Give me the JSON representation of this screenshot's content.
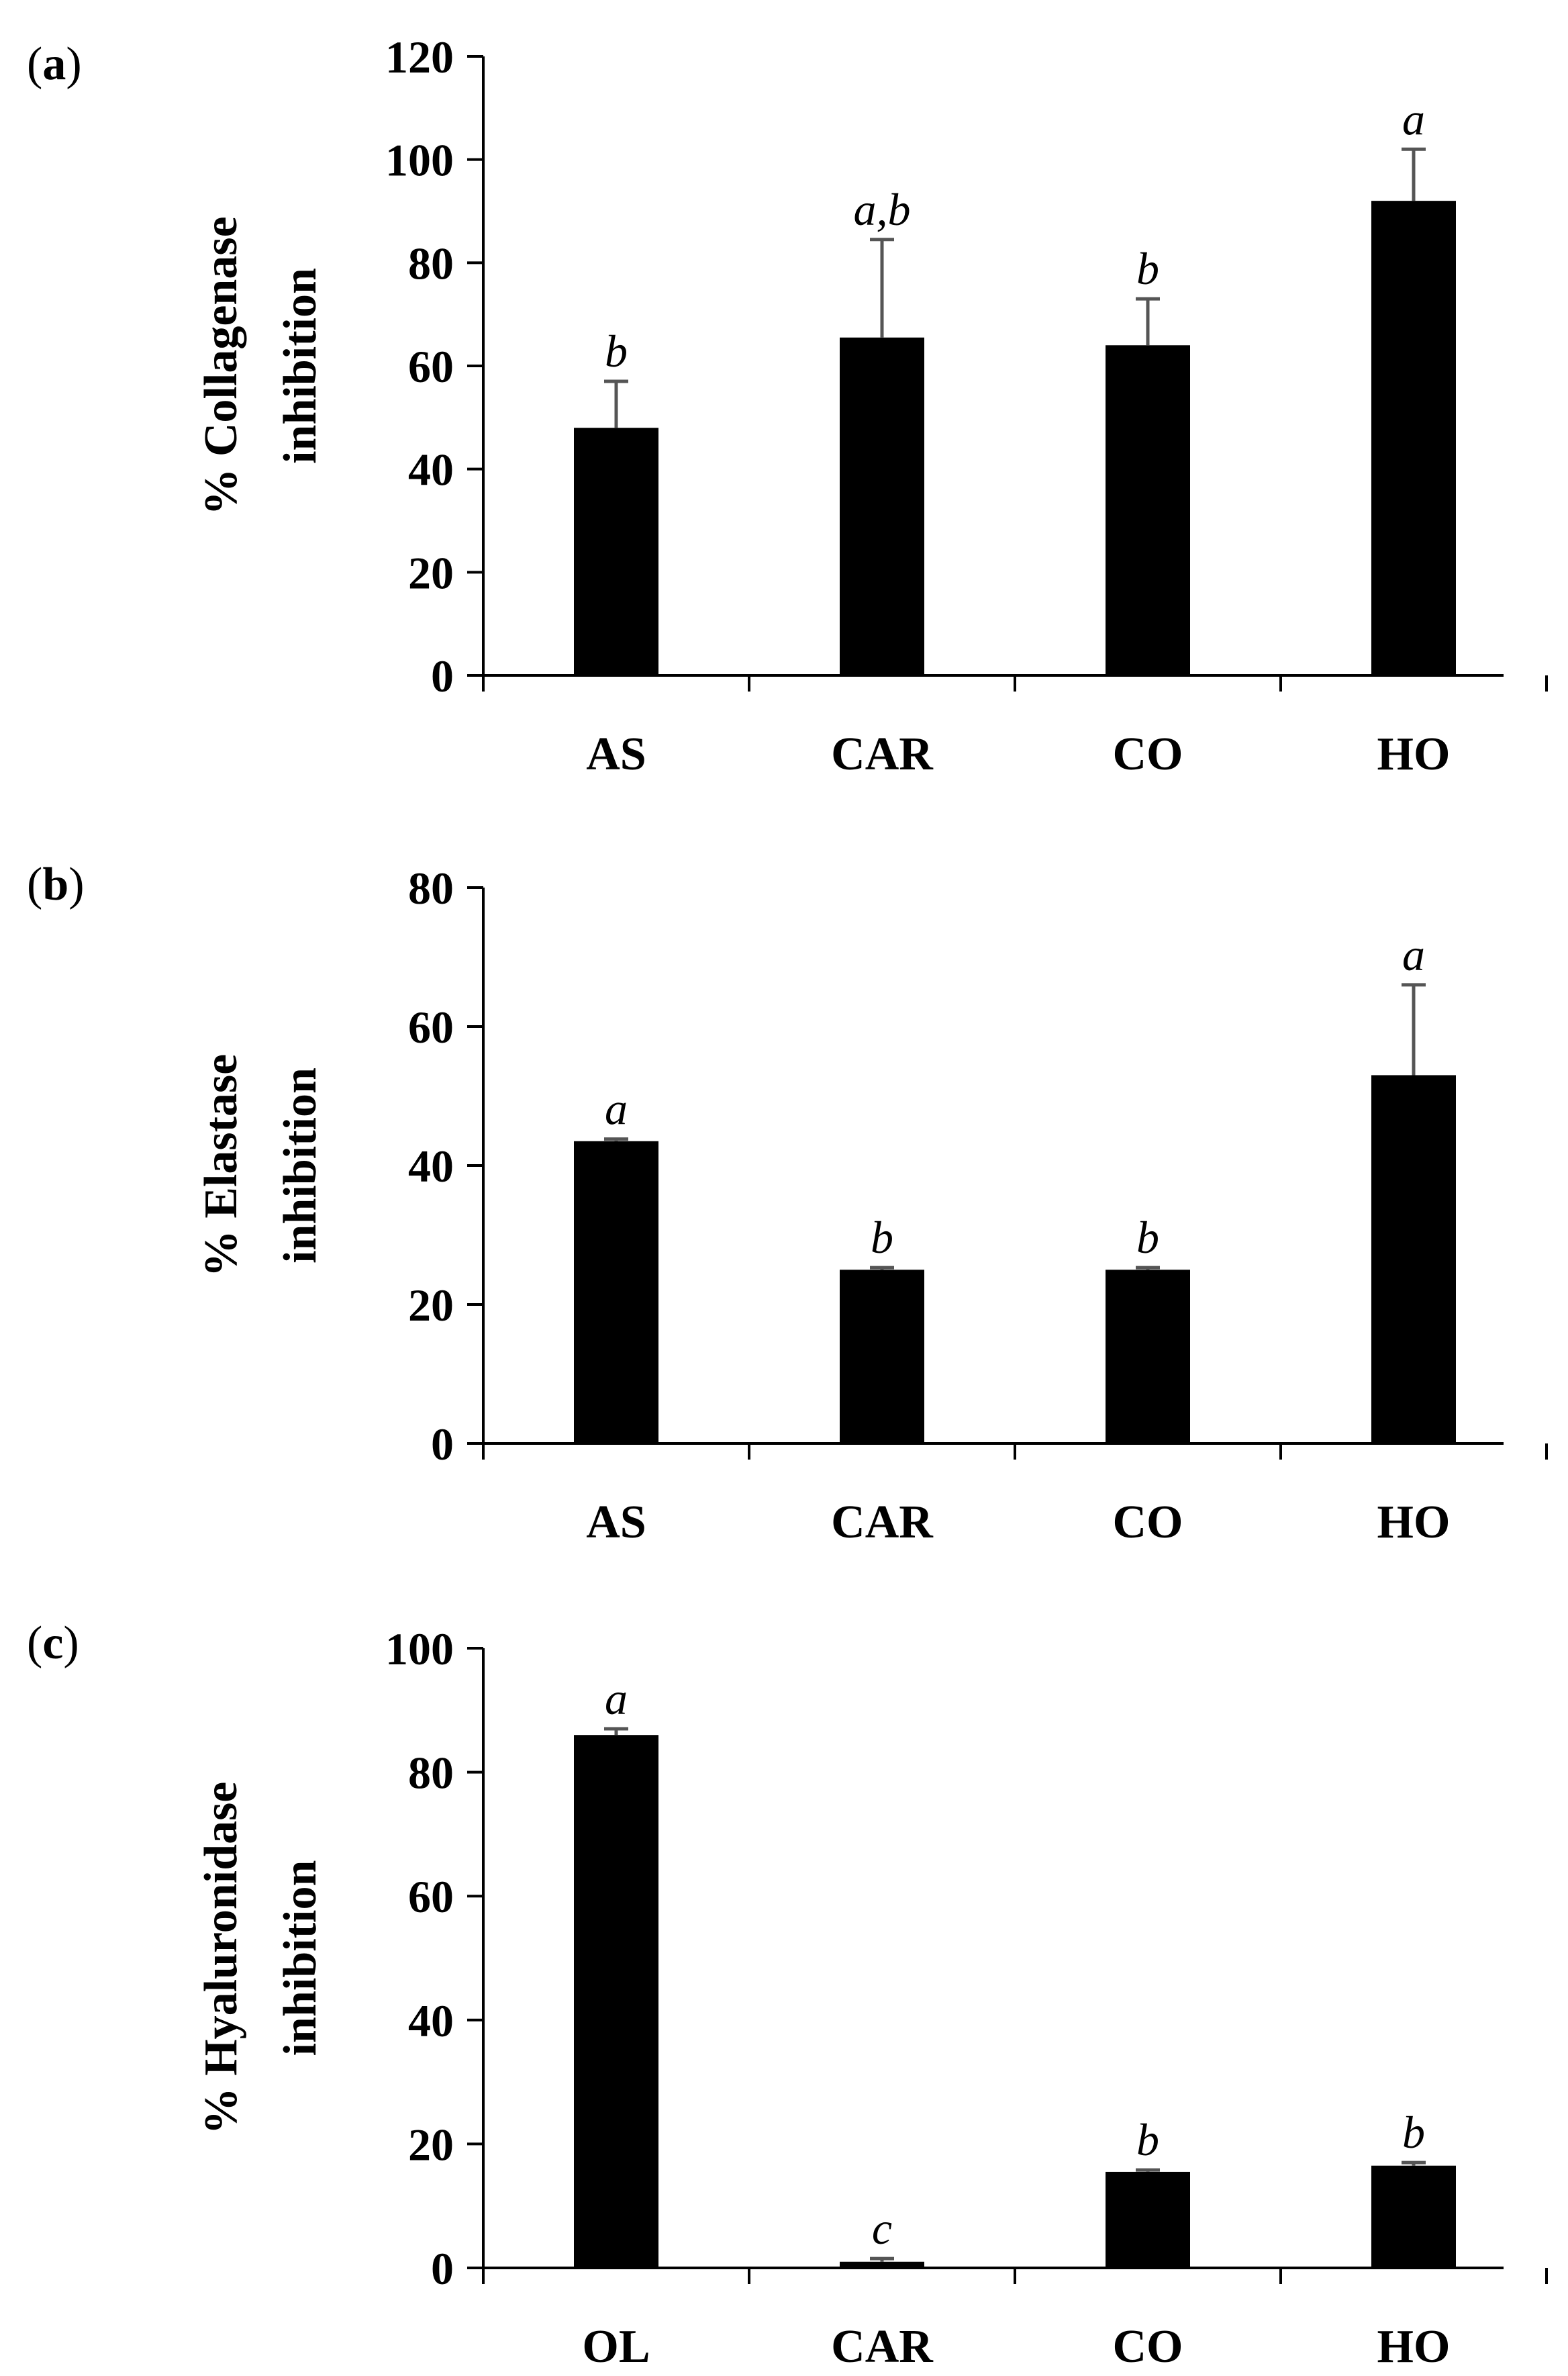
{
  "chart_data": [
    {
      "type": "bar",
      "panel_label": "a",
      "title": "",
      "xlabel": "",
      "ylabel_line1": "% Collagenase",
      "ylabel_line2": "inhibition",
      "categories": [
        "AS",
        "CAR",
        "CO",
        "HO"
      ],
      "values": [
        48,
        65.5,
        64,
        92
      ],
      "errors": [
        9,
        19,
        9,
        10
      ],
      "significance": [
        "b",
        "a,b",
        "b",
        "a"
      ],
      "ylim": [
        0,
        120
      ],
      "yticks": [
        0,
        20,
        40,
        60,
        80,
        100,
        120
      ],
      "ytick_labels": [
        "0",
        "20",
        "40",
        "60",
        "80",
        "100",
        "120"
      ],
      "grid": false,
      "legend": "none"
    },
    {
      "type": "bar",
      "panel_label": "b",
      "title": "",
      "xlabel": "",
      "ylabel_line1": "% Elastase",
      "ylabel_line2": "inhibition",
      "categories": [
        "AS",
        "CAR",
        "CO",
        "HO"
      ],
      "values": [
        43.5,
        25,
        25,
        53
      ],
      "errors": [
        0.3,
        0.3,
        0.3,
        13
      ],
      "significance": [
        "a",
        "b",
        "b",
        "a"
      ],
      "ylim": [
        0,
        80
      ],
      "yticks": [
        0,
        20,
        40,
        60,
        80
      ],
      "ytick_labels": [
        "0",
        "20",
        "40",
        "60",
        "80"
      ],
      "grid": false,
      "legend": "none"
    },
    {
      "type": "bar",
      "panel_label": "c",
      "title": "",
      "xlabel": "",
      "ylabel_line1": "% Hyaluronidase",
      "ylabel_line2": "inhibition",
      "categories": [
        "OL",
        "CAR",
        "CO",
        "HO"
      ],
      "values": [
        86,
        1,
        15.5,
        16.5
      ],
      "errors": [
        1,
        0.5,
        0.3,
        0.5
      ],
      "significance": [
        "a",
        "c",
        "b",
        "b"
      ],
      "ylim": [
        0,
        100
      ],
      "yticks": [
        0,
        20,
        40,
        60,
        80,
        100
      ],
      "ytick_labels": [
        "0",
        "20",
        "40",
        "60",
        "80",
        "100"
      ],
      "grid": false,
      "legend": "none"
    }
  ]
}
